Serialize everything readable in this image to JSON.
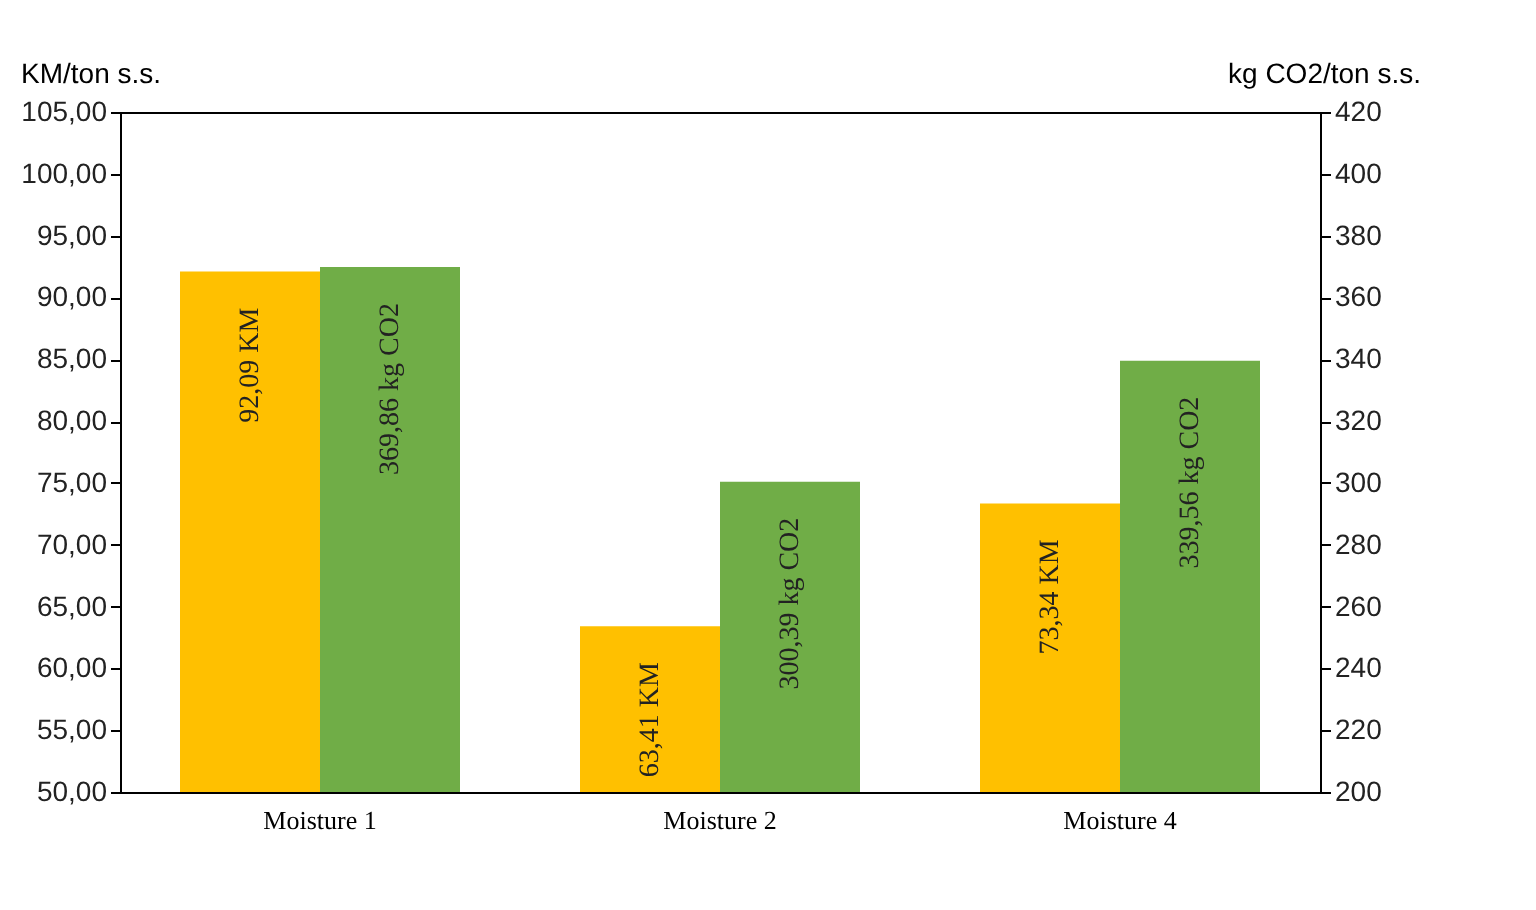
{
  "chart_data": {
    "type": "bar",
    "ylabel": "KM/ton s.s.",
    "y2label": "kg CO2/ton s.s.",
    "categories": [
      "Moisture 1",
      "Moisture 2",
      "Moisture 4"
    ],
    "series": [
      {
        "color": "#ffc000",
        "values": [
          92.09,
          63.41,
          73.34
        ],
        "value_labels": [
          "92,09 KM",
          "63,41 KM",
          "73,34 KM"
        ]
      },
      {
        "color": "#70ad47",
        "values": [
          369.86,
          300.39,
          339.56
        ],
        "value_labels": [
          "369,86 kg CO2",
          "300,39 kg CO2",
          "339,56 kg CO2"
        ],
        "axis": "y2"
      }
    ],
    "ylim": [
      50,
      105
    ],
    "yticks": [
      {
        "value": 50,
        "label": "50,00"
      },
      {
        "value": 55,
        "label": "55,00"
      },
      {
        "value": 60,
        "label": "60,00"
      },
      {
        "value": 65,
        "label": "65,00"
      },
      {
        "value": 70,
        "label": "70,00"
      },
      {
        "value": 75,
        "label": "75,00"
      },
      {
        "value": 80,
        "label": "80,00"
      },
      {
        "value": 85,
        "label": "85,00"
      },
      {
        "value": 90,
        "label": "90,00"
      },
      {
        "value": 95,
        "label": "95,00"
      },
      {
        "value": 100,
        "label": "100,00"
      },
      {
        "value": 105,
        "label": "105,00"
      }
    ],
    "y2lim": [
      200,
      420
    ],
    "y2ticks": [
      200,
      220,
      240,
      260,
      280,
      300,
      320,
      340,
      360,
      380,
      400,
      420
    ],
    "legend": false,
    "grid": false
  }
}
